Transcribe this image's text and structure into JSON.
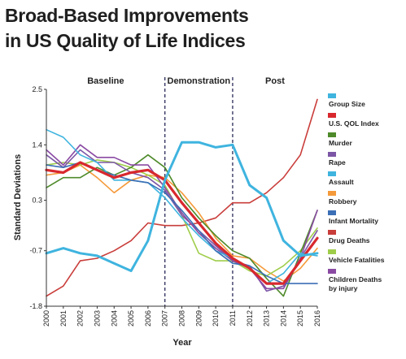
{
  "title_line1": "Broad-Based Improvements",
  "title_line2": "in US Quality of Life Indices",
  "chart_data": {
    "type": "line",
    "title": "Broad-Based Improvements in US Quality of Life Indices",
    "xlabel": "Year",
    "ylabel": "Standard Deviations",
    "x": [
      2000,
      2001,
      2002,
      2003,
      2004,
      2005,
      2006,
      2007,
      2008,
      2009,
      2010,
      2011,
      2012,
      2013,
      2014,
      2015,
      2016
    ],
    "x_ticks": [
      "2000",
      "2001",
      "2002",
      "2003",
      "2004",
      "2005",
      "2006",
      "2007",
      "2008",
      "2009",
      "2010",
      "2011",
      "2012",
      "2013",
      "2014",
      "2015",
      "2016"
    ],
    "y_ticks": [
      "2.5",
      "1.4",
      "0.3",
      "-0.7",
      "-1.8"
    ],
    "y_tick_values": [
      2.5,
      1.4,
      0.3,
      -0.7,
      -1.8
    ],
    "ylim": [
      -1.8,
      2.5
    ],
    "xlim": [
      2000,
      2016
    ],
    "phases": [
      "Baseline",
      "Demonstration",
      "Post"
    ],
    "phase_boundaries": [
      2007,
      2011
    ],
    "grid": false,
    "legend_position": "right",
    "series": [
      {
        "name": "Group Size",
        "color": "#3fb4df",
        "values": [
          -0.75,
          -0.65,
          -0.75,
          -0.8,
          -0.95,
          -1.1,
          -0.5,
          0.7,
          1.45,
          1.45,
          1.35,
          1.4,
          0.6,
          0.35,
          -0.5,
          -0.8,
          -0.75
        ]
      },
      {
        "name": "U.S. QOL Index",
        "color": "#d8282e",
        "values": [
          0.9,
          0.85,
          1.05,
          0.9,
          0.75,
          0.85,
          0.9,
          0.7,
          0.25,
          -0.15,
          -0.55,
          -0.85,
          -1.05,
          -1.35,
          -1.35,
          -0.9,
          -0.45
        ]
      },
      {
        "name": "Murder",
        "color": "#4e8a2a",
        "values": [
          0.55,
          0.75,
          0.75,
          0.95,
          0.8,
          0.95,
          1.2,
          0.95,
          0.35,
          -0.05,
          -0.4,
          -0.7,
          -0.85,
          -1.25,
          -1.6,
          -0.75,
          0.1
        ]
      },
      {
        "name": "Rape",
        "color": "#7c56a6",
        "values": [
          1.2,
          0.95,
          1.3,
          1.05,
          1.05,
          0.85,
          0.75,
          0.5,
          0.0,
          -0.3,
          -0.6,
          -0.9,
          -1.0,
          -1.5,
          -1.4,
          -0.85,
          -0.3
        ]
      },
      {
        "name": "Assault",
        "color": "#3fb4df",
        "values": [
          1.7,
          1.55,
          1.2,
          1.05,
          0.7,
          0.7,
          0.65,
          0.35,
          -0.05,
          -0.4,
          -0.7,
          -0.85,
          -1.05,
          -1.35,
          -1.15,
          -0.75,
          -0.8
        ]
      },
      {
        "name": "Robbery",
        "color": "#f59a3a",
        "values": [
          0.8,
          0.85,
          1.0,
          0.75,
          0.45,
          0.7,
          0.8,
          0.75,
          0.45,
          0.05,
          -0.45,
          -0.8,
          -0.85,
          -1.1,
          -1.3,
          -1.05,
          -0.65
        ]
      },
      {
        "name": "Infant Mortality",
        "color": "#3b6fb6",
        "values": [
          1.0,
          0.95,
          1.05,
          0.9,
          0.8,
          0.7,
          0.65,
          0.45,
          0.1,
          -0.3,
          -0.7,
          -0.95,
          -1.0,
          -1.2,
          -1.35,
          -1.35,
          -1.35
        ]
      },
      {
        "name": "Drug Deaths",
        "color": "#c93d3a",
        "values": [
          -1.6,
          -1.4,
          -0.9,
          -0.85,
          -0.7,
          -0.5,
          -0.15,
          -0.2,
          -0.2,
          -0.15,
          -0.05,
          0.25,
          0.25,
          0.45,
          0.75,
          1.2,
          2.3
        ]
      },
      {
        "name": "Vehicle Fatalities",
        "color": "#9fcd4a",
        "values": [
          1.0,
          1.05,
          1.0,
          1.1,
          1.05,
          0.95,
          0.8,
          0.6,
          0.0,
          -0.75,
          -0.9,
          -0.9,
          -1.1,
          -1.2,
          -1.0,
          -0.7,
          -0.25
        ]
      },
      {
        "name": "Children Deaths by injury",
        "color": "#8a4aa3",
        "values": [
          1.3,
          1.0,
          1.4,
          1.15,
          1.15,
          1.0,
          1.0,
          0.55,
          0.05,
          -0.35,
          -0.65,
          -0.9,
          -1.05,
          -1.45,
          -1.45,
          -0.85,
          0.1
        ]
      }
    ],
    "legend_entries": [
      {
        "lines": [
          "Group Size"
        ],
        "color": "#3fb4df"
      },
      {
        "lines": [
          "U.S. QOL Index"
        ],
        "color": "#d8282e"
      },
      {
        "lines": [
          "Murder"
        ],
        "color": "#4e8a2a"
      },
      {
        "lines": [
          "Rape"
        ],
        "color": "#7c56a6"
      },
      {
        "lines": [
          "Assault"
        ],
        "color": "#3fb4df"
      },
      {
        "lines": [
          "Robbery"
        ],
        "color": "#f59a3a"
      },
      {
        "lines": [
          "Infant Mortality"
        ],
        "color": "#3b6fb6"
      },
      {
        "lines": [
          "Drug Deaths"
        ],
        "color": "#c93d3a"
      },
      {
        "lines": [
          "Vehicle Fatalities"
        ],
        "color": "#9fcd4a"
      },
      {
        "lines": [
          "Children Deaths",
          "by injury"
        ],
        "color": "#8a4aa3"
      }
    ]
  }
}
